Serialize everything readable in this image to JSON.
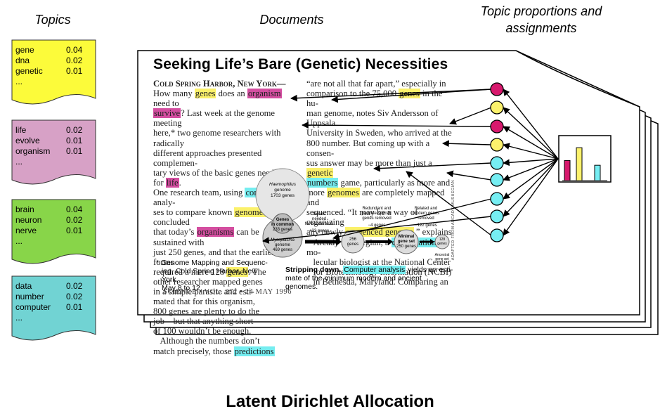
{
  "headers": {
    "topics": "Topics",
    "documents": "Documents",
    "proportions_line1": "Topic proportions and",
    "proportions_line2": "assignments"
  },
  "topics": [
    {
      "color": "#fcfb3a",
      "rows": [
        {
          "word": "gene",
          "p": "0.04"
        },
        {
          "word": "dna",
          "p": "0.02"
        },
        {
          "word": "genetic",
          "p": "0.01"
        },
        {
          "word": "...",
          "p": ""
        }
      ]
    },
    {
      "color": "#d7a1c6",
      "rows": [
        {
          "word": "life",
          "p": "0.02"
        },
        {
          "word": "evolve",
          "p": "0.01"
        },
        {
          "word": "organism",
          "p": "0.01"
        },
        {
          "word": "...",
          "p": ""
        }
      ]
    },
    {
      "color": "#88d549",
      "rows": [
        {
          "word": "brain",
          "p": "0.04"
        },
        {
          "word": "neuron",
          "p": "0.02"
        },
        {
          "word": "nerve",
          "p": "0.01"
        },
        {
          "word": "...",
          "p": ""
        }
      ]
    },
    {
      "color": "#71d3d3",
      "rows": [
        {
          "word": "data",
          "p": "0.02"
        },
        {
          "word": "number",
          "p": "0.02"
        },
        {
          "word": "computer",
          "p": "0.01"
        },
        {
          "word": "...",
          "p": ""
        }
      ]
    }
  ],
  "article": {
    "title": "Seeking Life’s Bare (Genetic) Necessities",
    "footnote": [
      "* Genome Mapping and Sequenc-",
      "ing, Cold Spring Harbor, New York,",
      "May 8 to 12."
    ],
    "caption_lead": "Stripping down.",
    "caption_hl": "Computer analysis",
    "caption_rest1": " yields an esti-",
    "caption_rest2": "mate of the minimum modern and ancient genomes.",
    "journal": "SCIENCE • VOL. 272 • 24 MAY 1996",
    "figure_labels": {
      "haemophilus": "Haemophilus genome 1703 genes",
      "common": "Genes in common 233 genes",
      "mycoplasma": "Mycoplasma genome 469 genes",
      "needed": "Genes needed for biochemical",
      "plus22": "+22 genes",
      "redundant": "Redundant and parasite-specific genes removed",
      "minus4": "−4 genes",
      "related": "Related and modern genes removed",
      "minus122": "−122 genes",
      "g256": "256 genes",
      "minimal": "Minimal gene set 250 genes",
      "g128": "128 genes",
      "ancestral": "Ancestral gene set",
      "adapted": "ADAPTED FROM ARCADY MUSHEGIAN"
    }
  },
  "circle_colors": [
    "#d7196d",
    "#fcf26c",
    "#d7196d",
    "#fcf26c",
    "#76eef3",
    "#76eef3",
    "#76eef3",
    "#76eef3",
    "#76eef3"
  ],
  "proportions": {
    "bars": [
      {
        "color": "#d7196d",
        "value": 0.55
      },
      {
        "color": "#fcf26c",
        "value": 0.9
      },
      {
        "color": "#76eef3",
        "value": 0.42
      }
    ]
  },
  "footer_title": "Latent Dirichlet Allocation"
}
